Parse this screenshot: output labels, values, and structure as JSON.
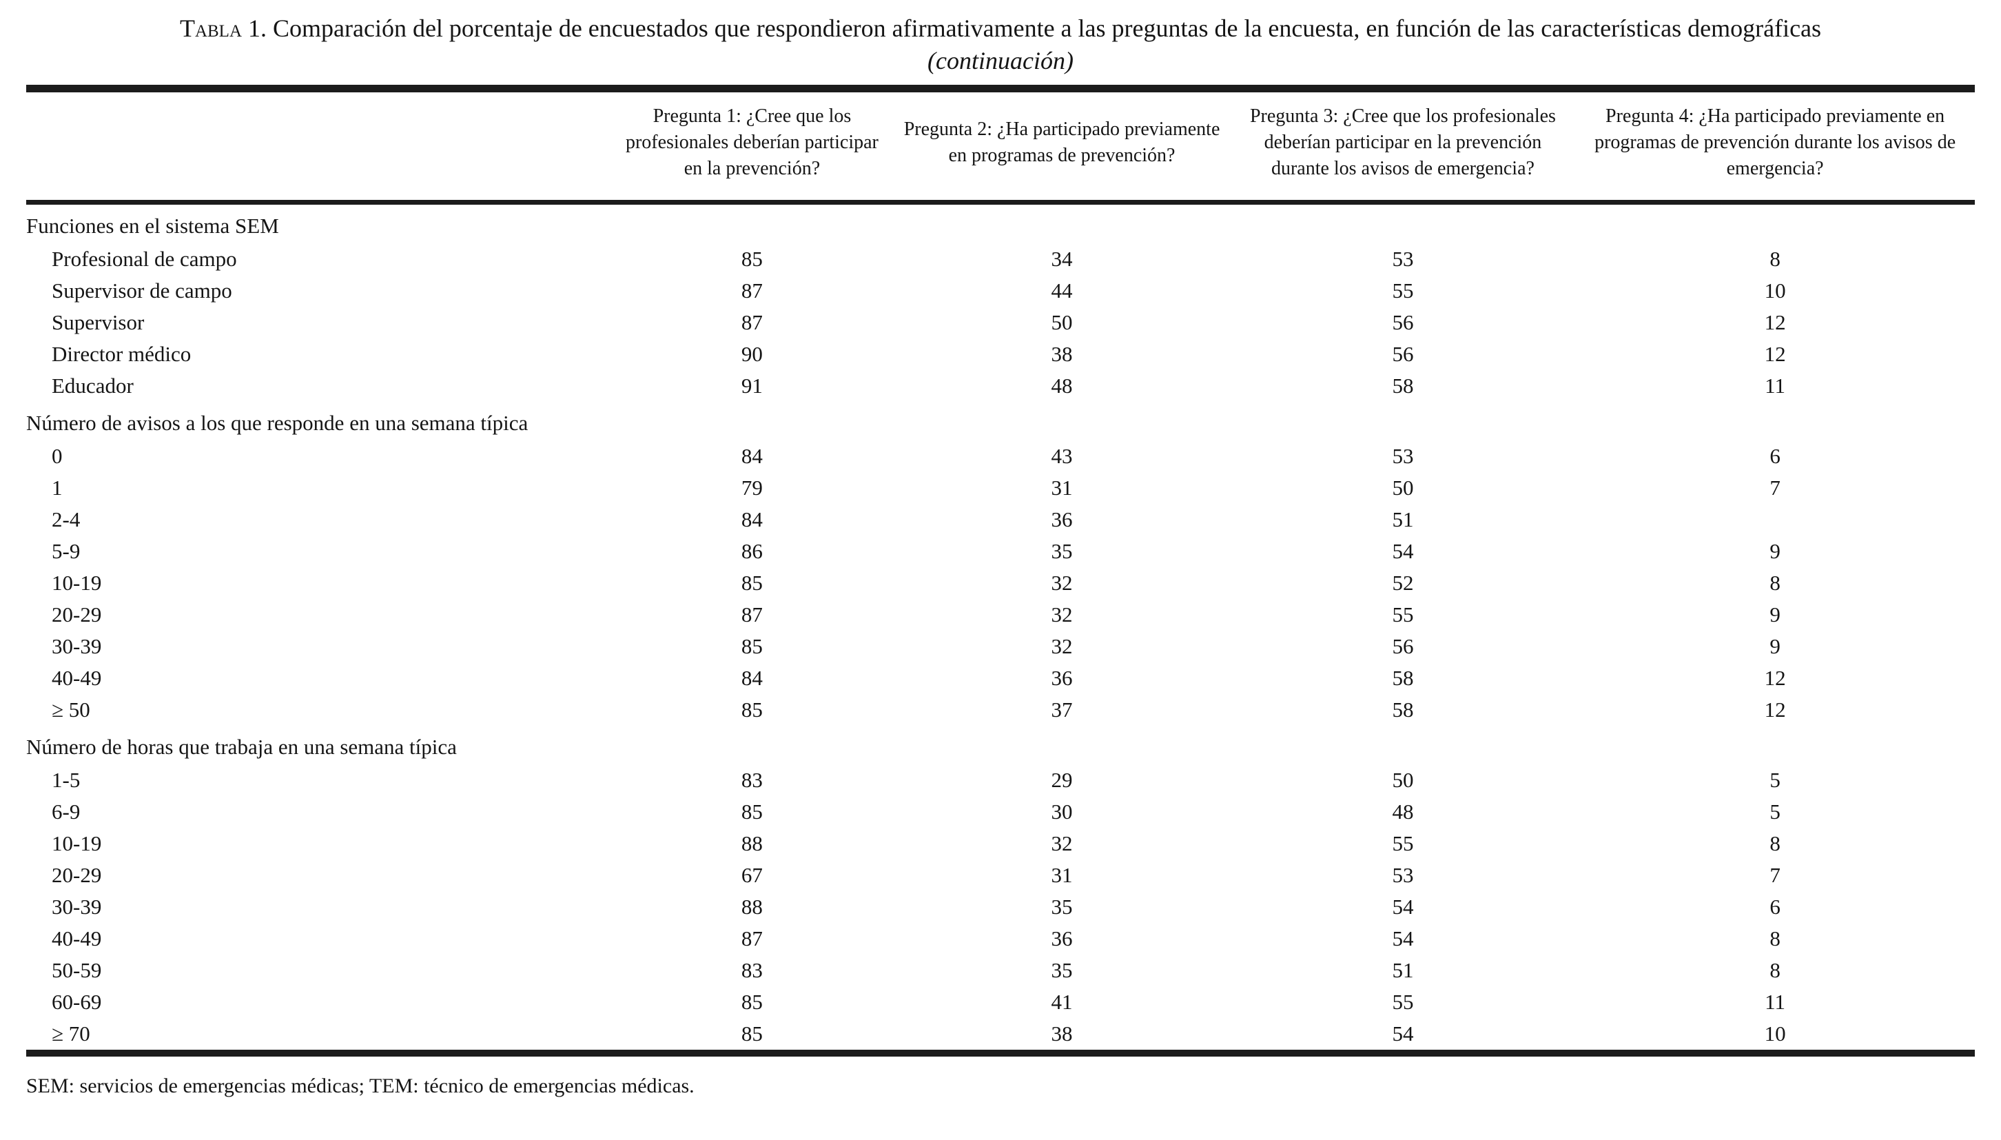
{
  "title": {
    "prefix": "Tabla 1.",
    "text": " Comparación del porcentaje de encuestados que respondieron afirmativamente a las preguntas de la encuesta, en función de las características demográficas",
    "continuation": "(continuación)"
  },
  "columns": [
    "Pregunta 1: ¿Cree que los profesionales deberían participar en la prevención?",
    "Pregunta 2: ¿Ha participado previamente en programas de prevención?",
    "Pregunta 3: ¿Cree que los profesionales deberían participar en la prevención durante los avisos de emergencia?",
    "Pregunta 4: ¿Ha participado previamente en programas de prevención durante los avisos de emergencia?"
  ],
  "sections": [
    {
      "header": "Funciones en el sistema SEM",
      "rows": [
        {
          "label": "Profesional de campo",
          "values": [
            "85",
            "34",
            "53",
            "8"
          ]
        },
        {
          "label": "Supervisor de campo",
          "values": [
            "87",
            "44",
            "55",
            "10"
          ]
        },
        {
          "label": "Supervisor",
          "values": [
            "87",
            "50",
            "56",
            "12"
          ]
        },
        {
          "label": "Director médico",
          "values": [
            "90",
            "38",
            "56",
            "12"
          ]
        },
        {
          "label": "Educador",
          "values": [
            "91",
            "48",
            "58",
            "11"
          ]
        }
      ]
    },
    {
      "header": "Número de avisos a los que responde en una semana típica",
      "rows": [
        {
          "label": "0",
          "values": [
            "84",
            "43",
            "53",
            "6"
          ]
        },
        {
          "label": "1",
          "values": [
            "79",
            "31",
            "50",
            "7"
          ]
        },
        {
          "label": "2-4",
          "values": [
            "84",
            "36",
            "51",
            ""
          ]
        },
        {
          "label": "5-9",
          "values": [
            "86",
            "35",
            "54",
            "9"
          ]
        },
        {
          "label": "10-19",
          "values": [
            "85",
            "32",
            "52",
            "8"
          ]
        },
        {
          "label": "20-29",
          "values": [
            "87",
            "32",
            "55",
            "9"
          ]
        },
        {
          "label": "30-39",
          "values": [
            "85",
            "32",
            "56",
            "9"
          ]
        },
        {
          "label": "40-49",
          "values": [
            "84",
            "36",
            "58",
            "12"
          ]
        },
        {
          "label": "≥ 50",
          "values": [
            "85",
            "37",
            "58",
            "12"
          ]
        }
      ]
    },
    {
      "header": "Número de horas que trabaja en una semana típica",
      "rows": [
        {
          "label": "1-5",
          "values": [
            "83",
            "29",
            "50",
            "5"
          ]
        },
        {
          "label": "6-9",
          "values": [
            "85",
            "30",
            "48",
            "5"
          ]
        },
        {
          "label": "10-19",
          "values": [
            "88",
            "32",
            "55",
            "8"
          ]
        },
        {
          "label": "20-29",
          "values": [
            "67",
            "31",
            "53",
            "7"
          ]
        },
        {
          "label": "30-39",
          "values": [
            "88",
            "35",
            "54",
            "6"
          ]
        },
        {
          "label": "40-49",
          "values": [
            "87",
            "36",
            "54",
            "8"
          ]
        },
        {
          "label": "50-59",
          "values": [
            "83",
            "35",
            "51",
            "8"
          ]
        },
        {
          "label": "60-69",
          "values": [
            "85",
            "41",
            "55",
            "11"
          ]
        },
        {
          "label": "≥ 70",
          "values": [
            "85",
            "38",
            "54",
            "10"
          ]
        }
      ]
    }
  ],
  "footnote": "SEM: servicios de emergencias médicas; TEM: técnico de emergencias médicas."
}
